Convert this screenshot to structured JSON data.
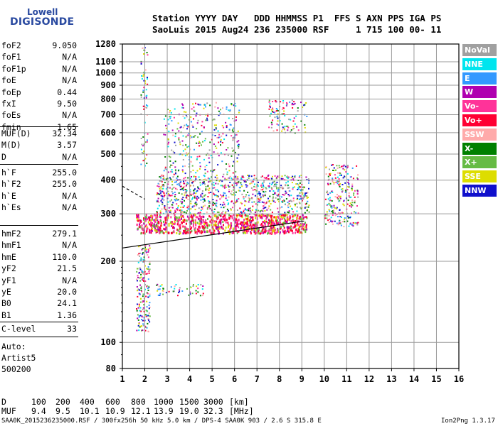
{
  "logo": {
    "line1": "Lowell",
    "line2": "DIGISONDE"
  },
  "header": {
    "line1": "Station YYYY DAY   DDD HHMMSS P1  FFS S AXN PPS IGA PS",
    "line2": "SaoLuis 2015 Aug24 236 235000 RSF     1 715 100 00- 11"
  },
  "params_group1": [
    {
      "name": "foF2",
      "value": "9.050"
    },
    {
      "name": "foF1",
      "value": "N/A"
    },
    {
      "name": "foF1p",
      "value": "N/A"
    },
    {
      "name": "foE",
      "value": "N/A"
    },
    {
      "name": "foEp",
      "value": "0.44"
    },
    {
      "name": "fxI",
      "value": "9.50"
    },
    {
      "name": "foEs",
      "value": "N/A"
    },
    {
      "name": "fmin",
      "value": "1.65"
    }
  ],
  "params_group2": [
    {
      "name": "MUF(D)",
      "value": "32.34"
    },
    {
      "name": "M(D)",
      "value": "3.57"
    },
    {
      "name": "D",
      "value": "N/A"
    }
  ],
  "params_group3": [
    {
      "name": "h`F",
      "value": "255.0"
    },
    {
      "name": "h`F2",
      "value": "255.0"
    },
    {
      "name": "h`E",
      "value": "N/A"
    },
    {
      "name": "h`Es",
      "value": "N/A"
    }
  ],
  "params_group4": [
    {
      "name": "hmF2",
      "value": "279.1"
    },
    {
      "name": "hmF1",
      "value": "N/A"
    },
    {
      "name": "hmE",
      "value": "110.0"
    },
    {
      "name": "yF2",
      "value": "21.5"
    },
    {
      "name": "yF1",
      "value": "N/A"
    },
    {
      "name": "yE",
      "value": "20.0"
    },
    {
      "name": "B0",
      "value": "24.1"
    },
    {
      "name": "B1",
      "value": "1.36"
    }
  ],
  "params_group5": [
    {
      "name": "C-level",
      "value": "33"
    }
  ],
  "autoscaling": {
    "line1": "Auto:",
    "line2": "Artist5",
    "line3": "500200"
  },
  "legend": [
    {
      "label": "NoVal",
      "color": "#a0a0a0"
    },
    {
      "label": "NNE",
      "color": "#00e5ee"
    },
    {
      "label": "E",
      "color": "#3399ff"
    },
    {
      "label": "W",
      "color": "#b000b0"
    },
    {
      "label": "Vo-",
      "color": "#ff3399"
    },
    {
      "label": "Vo+",
      "color": "#ff0033"
    },
    {
      "label": "SSW",
      "color": "#ffaaaa"
    },
    {
      "label": "X-",
      "color": "#008000"
    },
    {
      "label": "X+",
      "color": "#66bb44"
    },
    {
      "label": "SSE",
      "color": "#dddd00"
    },
    {
      "label": "NNW",
      "color": "#1010cc"
    }
  ],
  "muf_table": {
    "d_label": "D",
    "d_values": [
      "100",
      "200",
      "400",
      "600",
      "800",
      "1000",
      "1500",
      "3000"
    ],
    "d_unit": "[km]",
    "muf_label": "MUF",
    "muf_values": [
      "9.4",
      "9.5",
      "10.1",
      "10.9",
      "12.1",
      "13.9",
      "19.0",
      "32.3"
    ],
    "muf_unit": "[MHz]"
  },
  "footer": {
    "left": "SAA0K_2015236235000.RSF / 300fx256h 50 kHz 5.0 km / DPS-4 SAA0K 903 / 2.6 S 315.8 E",
    "right": "Ion2Png 1.3.17"
  },
  "chart_data": {
    "type": "scatter",
    "xlim": [
      1,
      16
    ],
    "ylim": [
      80,
      1280
    ],
    "y_scale": "log",
    "x_ticks": [
      1,
      2,
      3,
      4,
      5,
      6,
      7,
      8,
      9,
      10,
      11,
      12,
      13,
      14,
      15,
      16
    ],
    "y_ticks": [
      80,
      100,
      200,
      300,
      400,
      500,
      600,
      700,
      800,
      900,
      1000,
      1100,
      1280
    ],
    "grid": true,
    "regions": [
      {
        "name": "F-trace",
        "f": [
          1.6,
          9.2
        ],
        "h": [
          255,
          300
        ],
        "density": 0.9
      },
      {
        "name": "F-upper",
        "f": [
          2.5,
          9.3
        ],
        "h": [
          300,
          420
        ],
        "density": 0.45
      },
      {
        "name": "spread-F",
        "f": [
          2.8,
          6.2
        ],
        "h": [
          420,
          780
        ],
        "density": 0.18
      },
      {
        "name": "spread-F-2",
        "f": [
          7.5,
          9.2
        ],
        "h": [
          600,
          800
        ],
        "density": 0.25
      },
      {
        "name": "F-extension",
        "f": [
          10.0,
          11.5
        ],
        "h": [
          270,
          460
        ],
        "density": 0.35
      },
      {
        "name": "low-echoes",
        "f": [
          1.6,
          2.2
        ],
        "h": [
          110,
          230
        ],
        "density": 0.5
      },
      {
        "name": "low-spread",
        "f": [
          2.5,
          4.6
        ],
        "h": [
          150,
          165
        ],
        "density": 0.3
      },
      {
        "name": "column",
        "f": [
          1.8,
          2.1
        ],
        "h": [
          450,
          1250
        ],
        "density": 0.25
      }
    ],
    "lines": [
      {
        "name": "profile",
        "points": [
          [
            1.0,
            224
          ],
          [
            9.1,
            282
          ]
        ]
      },
      {
        "name": "dashed",
        "points": [
          [
            1.0,
            380
          ],
          [
            2.0,
            340
          ]
        ]
      }
    ]
  }
}
